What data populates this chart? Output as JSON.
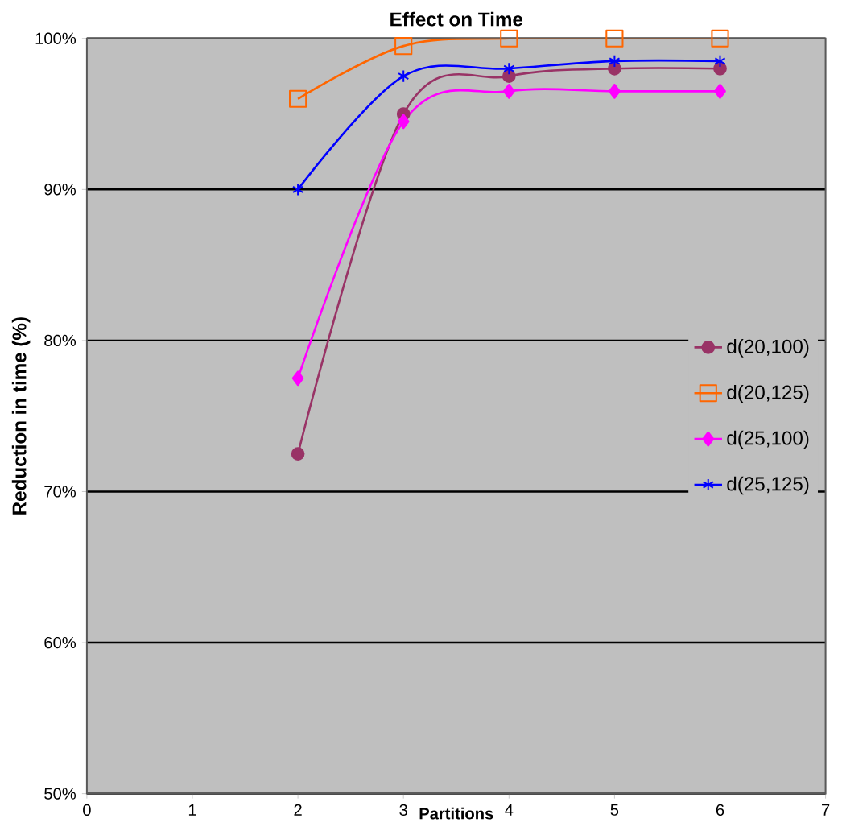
{
  "chart_data": {
    "type": "line",
    "title": "Effect on Time",
    "xlabel": "Partitions",
    "ylabel": "Reduction in time (%)",
    "x": [
      2,
      3,
      4,
      5,
      6
    ],
    "series": [
      {
        "name": "d(20,100)",
        "color": "#993366",
        "marker": "circle",
        "values": [
          72.5,
          95,
          97.5,
          98,
          98
        ]
      },
      {
        "name": "d(20,125)",
        "color": "#ff6600",
        "marker": "square",
        "values": [
          96,
          99.5,
          100,
          100,
          100
        ]
      },
      {
        "name": "d(25,100)",
        "color": "#ff00ff",
        "marker": "diamond",
        "values": [
          77.5,
          94.5,
          96.5,
          96.5,
          96.5
        ]
      },
      {
        "name": "d(25,125)",
        "color": "#0000ff",
        "marker": "cross",
        "values": [
          90,
          97.5,
          98,
          98.5,
          98.5
        ]
      }
    ],
    "xlim": [
      0,
      7
    ],
    "ylim": [
      50,
      100
    ],
    "xticks": [
      0,
      1,
      2,
      3,
      4,
      5,
      6,
      7
    ],
    "yticks": [
      {
        "value": 50,
        "label": "50%"
      },
      {
        "value": 60,
        "label": "60%"
      },
      {
        "value": 70,
        "label": "70%"
      },
      {
        "value": 80,
        "label": "80%"
      },
      {
        "value": 90,
        "label": "90%"
      },
      {
        "value": 100,
        "label": "100%"
      }
    ],
    "grid": "y",
    "legend": "right"
  }
}
